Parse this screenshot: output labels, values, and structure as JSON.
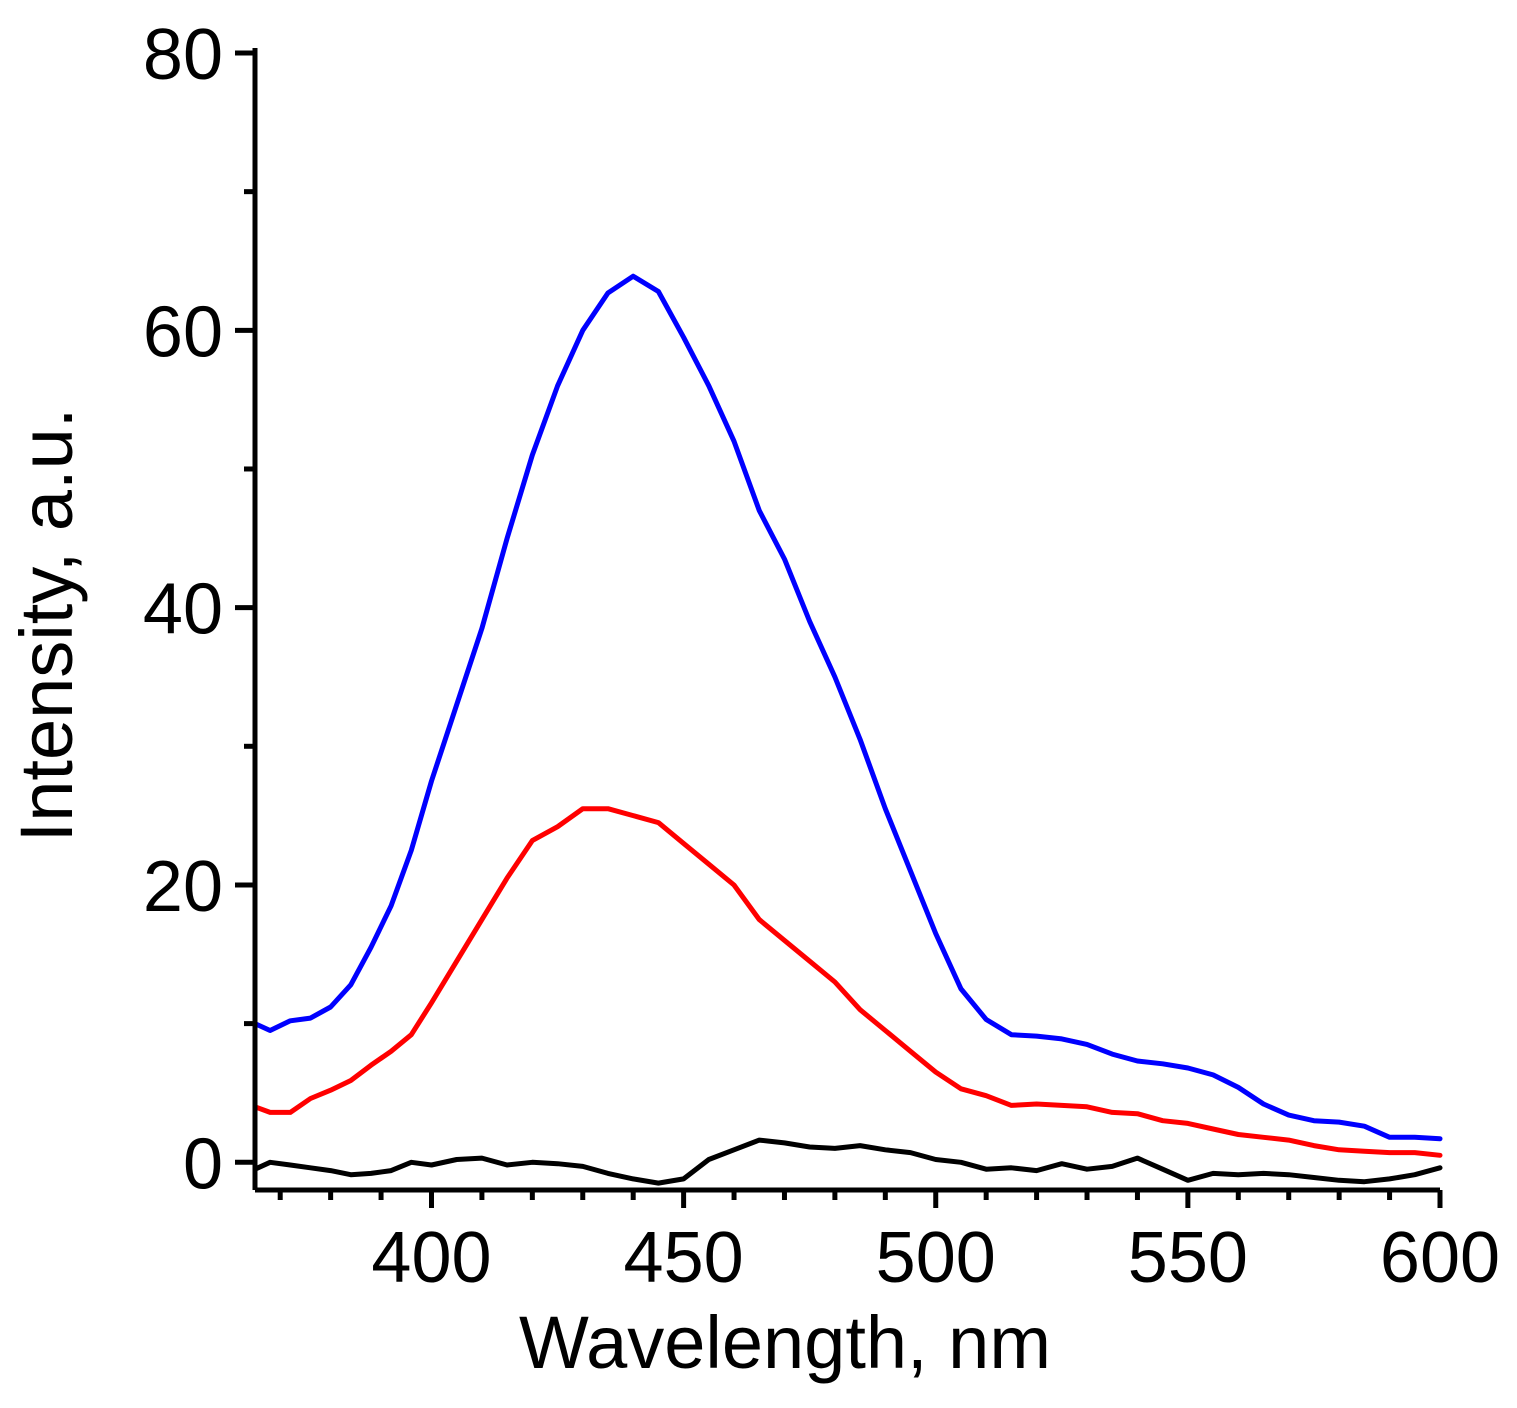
{
  "chart_data": {
    "type": "line",
    "title": "",
    "xlabel": "Wavelength, nm",
    "ylabel": "Intensity, a.u.",
    "xlim": [
      365,
      600
    ],
    "ylim": [
      -2,
      80
    ],
    "xticks": [
      400,
      450,
      500,
      550,
      600
    ],
    "xtick_labels": [
      "400",
      "450",
      "500",
      "550",
      "600"
    ],
    "yticks": [
      0,
      20,
      40,
      60,
      80
    ],
    "ytick_labels": [
      "0",
      "20",
      "40",
      "60",
      "80"
    ],
    "x_minor_step": 10,
    "y_minor_step": 10,
    "grid": false,
    "legend": "none",
    "series": [
      {
        "name": "blue",
        "color": "#0000ff",
        "x": [
          365,
          368,
          372,
          376,
          380,
          384,
          388,
          392,
          396,
          400,
          405,
          410,
          415,
          420,
          425,
          430,
          435,
          440,
          445,
          450,
          455,
          460,
          465,
          470,
          475,
          480,
          485,
          490,
          495,
          500,
          505,
          510,
          515,
          520,
          525,
          530,
          535,
          540,
          545,
          550,
          555,
          560,
          565,
          570,
          575,
          580,
          585,
          590,
          595,
          600
        ],
        "y": [
          10,
          9.5,
          10.2,
          10.4,
          11.2,
          12.8,
          15.5,
          18.5,
          22.5,
          27.5,
          33,
          38.5,
          45,
          51,
          56,
          60,
          62.7,
          63.9,
          62.8,
          59.5,
          56,
          52,
          47,
          43.5,
          39,
          35,
          30.5,
          25.5,
          21,
          16.5,
          12.5,
          10.3,
          9.2,
          9.1,
          8.9,
          8.5,
          7.8,
          7.3,
          7.1,
          6.8,
          6.3,
          5.4,
          4.2,
          3.4,
          3,
          2.9,
          2.6,
          1.8,
          1.8,
          1.7
        ]
      },
      {
        "name": "red",
        "color": "#ff0000",
        "x": [
          365,
          368,
          372,
          376,
          380,
          384,
          388,
          392,
          396,
          400,
          405,
          410,
          415,
          420,
          425,
          430,
          435,
          440,
          445,
          450,
          455,
          460,
          465,
          470,
          475,
          480,
          485,
          490,
          495,
          500,
          505,
          510,
          515,
          520,
          525,
          530,
          535,
          540,
          545,
          550,
          555,
          560,
          565,
          570,
          575,
          580,
          585,
          590,
          595,
          600
        ],
        "y": [
          4,
          3.6,
          3.6,
          4.6,
          5.2,
          5.9,
          7,
          8,
          9.2,
          11.5,
          14.5,
          17.5,
          20.5,
          23.2,
          24.2,
          25.5,
          25.5,
          25,
          24.5,
          23,
          21.5,
          20,
          17.5,
          16,
          14.5,
          13,
          11,
          9.5,
          8,
          6.5,
          5.3,
          4.8,
          4.1,
          4.2,
          4.1,
          4,
          3.6,
          3.5,
          3,
          2.8,
          2.4,
          2,
          1.8,
          1.6,
          1.2,
          0.9,
          0.8,
          0.7,
          0.7,
          0.5
        ]
      },
      {
        "name": "black",
        "color": "#000000",
        "x": [
          365,
          368,
          372,
          376,
          380,
          384,
          388,
          392,
          396,
          400,
          405,
          410,
          415,
          420,
          425,
          430,
          435,
          440,
          445,
          450,
          455,
          460,
          465,
          470,
          475,
          480,
          485,
          490,
          495,
          500,
          505,
          510,
          515,
          520,
          525,
          530,
          535,
          540,
          545,
          550,
          555,
          560,
          565,
          570,
          575,
          580,
          585,
          590,
          595,
          600
        ],
        "y": [
          -0.5,
          0,
          -0.2,
          -0.4,
          -0.6,
          -0.9,
          -0.8,
          -0.6,
          0,
          -0.2,
          0.2,
          0.3,
          -0.2,
          0,
          -0.1,
          -0.3,
          -0.8,
          -1.2,
          -1.5,
          -1.2,
          0.2,
          0.9,
          1.6,
          1.4,
          1.1,
          1,
          1.2,
          0.9,
          0.7,
          0.2,
          0,
          -0.5,
          -0.4,
          -0.6,
          -0.1,
          -0.5,
          -0.3,
          0.3,
          -0.5,
          -1.3,
          -0.8,
          -0.9,
          -0.8,
          -0.9,
          -1.1,
          -1.3,
          -1.4,
          -1.2,
          -0.9,
          -0.4
        ]
      }
    ]
  }
}
